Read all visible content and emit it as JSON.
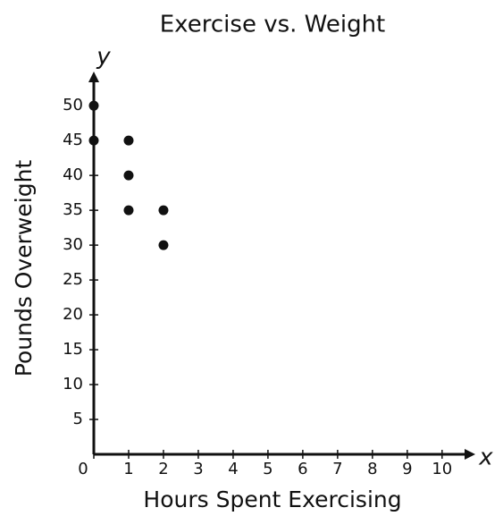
{
  "chart_data": {
    "type": "scatter",
    "title": "Exercise vs. Weight",
    "x_label": "Hours Spent Exercising",
    "y_label": "Pounds Overweight",
    "x_axis_name": "x",
    "y_axis_name": "y",
    "x": [
      0,
      0,
      1,
      1,
      1,
      2,
      2
    ],
    "values": [
      50,
      45,
      45,
      40,
      35,
      35,
      30
    ],
    "color": "#111111",
    "xlim": [
      0,
      10.8
    ],
    "ylim": [
      0,
      54
    ],
    "xticks": [
      0,
      1,
      2,
      3,
      4,
      5,
      6,
      7,
      8,
      9,
      10
    ],
    "yticks": [
      5,
      10,
      15,
      20,
      25,
      30,
      35,
      40,
      45,
      50
    ],
    "grid": false
  }
}
